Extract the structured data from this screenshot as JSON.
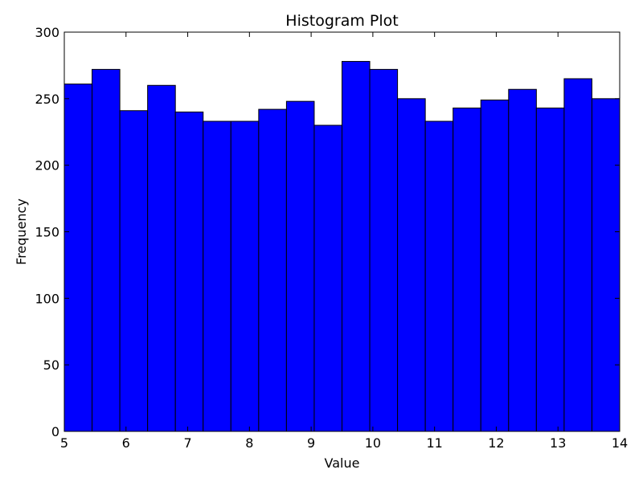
{
  "chart_data": {
    "type": "bar",
    "title": "Histogram Plot",
    "xlabel": "Value",
    "ylabel": "Frequency",
    "xlim": [
      5,
      14
    ],
    "ylim": [
      0,
      300
    ],
    "xticks": [
      5,
      6,
      7,
      8,
      9,
      10,
      11,
      12,
      13,
      14
    ],
    "yticks": [
      0,
      50,
      100,
      150,
      200,
      250,
      300
    ],
    "bins": {
      "start": 5,
      "end": 14,
      "count": 20
    },
    "values": [
      261,
      272,
      241,
      260,
      240,
      233,
      233,
      242,
      248,
      230,
      278,
      272,
      250,
      233,
      243,
      249,
      257,
      243,
      265,
      250
    ],
    "bar_color": "#0000ff",
    "edge_color": "#000000",
    "grid": false,
    "legend": false
  }
}
